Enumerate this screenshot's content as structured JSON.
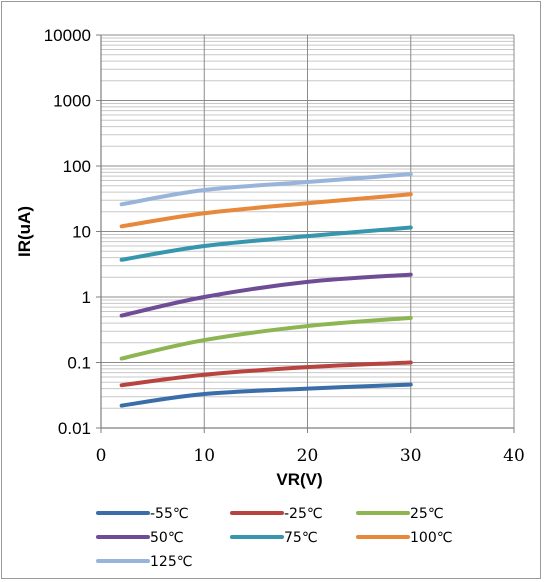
{
  "chart_data": {
    "type": "line",
    "title": "",
    "xlabel": "VR(V)",
    "ylabel": "IR(uA)",
    "xlim": [
      0,
      40
    ],
    "ylim": [
      0.01,
      10000
    ],
    "yscale": "log",
    "grid": true,
    "legend_position": "bottom",
    "x_ticks": [
      "0",
      "10",
      "20",
      "30",
      "40"
    ],
    "y_ticks": [
      "10000",
      "1000",
      "100",
      "10",
      "1",
      "0.1",
      "0.01"
    ],
    "x": [
      2,
      10,
      20,
      30
    ],
    "series": [
      {
        "name": "-55℃",
        "color": "#3a6ea8",
        "values": [
          0.022,
          0.033,
          0.04,
          0.046
        ]
      },
      {
        "name": "-25℃",
        "color": "#b8443f",
        "values": [
          0.045,
          0.065,
          0.085,
          0.1
        ]
      },
      {
        "name": "25℃",
        "color": "#8db552",
        "values": [
          0.115,
          0.22,
          0.36,
          0.48
        ]
      },
      {
        "name": "50℃",
        "color": "#6e4d96",
        "values": [
          0.52,
          1.0,
          1.7,
          2.2
        ]
      },
      {
        "name": "75℃",
        "color": "#3596ae",
        "values": [
          3.7,
          6.0,
          8.5,
          11.5
        ]
      },
      {
        "name": "100℃",
        "color": "#e8883a",
        "values": [
          12,
          19,
          27,
          37
        ]
      },
      {
        "name": "125℃",
        "color": "#98b4da",
        "values": [
          26,
          43,
          57,
          75
        ]
      }
    ]
  }
}
